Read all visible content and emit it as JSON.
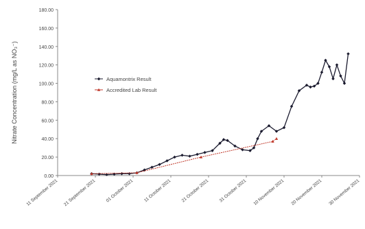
{
  "chart_data": {
    "type": "line",
    "title": "",
    "xlabel": "",
    "ylabel": "Nitrate Concentration (mg/L as NO₃⁻)",
    "ylim": [
      0,
      180
    ],
    "y_ticks": [
      "0.00",
      "20.00",
      "40.00",
      "60.00",
      "80.00",
      "100.00",
      "120.00",
      "140.00",
      "160.00",
      "180.00"
    ],
    "x_ticks": [
      "11 September 2021",
      "21 September 2021",
      "01 October 2021",
      "11 October 2021",
      "21 October 2021",
      "31 October 2021",
      "10 November 2021",
      "20 November 2021",
      "30 November 2021"
    ],
    "xlim": [
      "2021-09-11",
      "2021-11-30"
    ],
    "grid": false,
    "legend_position": "center-left",
    "series": [
      {
        "name": "Aquamontrix Result",
        "color": "#1a1a2e",
        "marker": "diamond",
        "x": [
          "2021-09-20",
          "2021-09-22",
          "2021-09-24",
          "2021-09-26",
          "2021-09-28",
          "2021-09-30",
          "2021-10-02",
          "2021-10-04",
          "2021-10-06",
          "2021-10-08",
          "2021-10-10",
          "2021-10-12",
          "2021-10-14",
          "2021-10-16",
          "2021-10-18",
          "2021-10-20",
          "2021-10-22",
          "2021-10-24",
          "2021-10-25",
          "2021-10-26",
          "2021-10-28",
          "2021-10-30",
          "2021-11-01",
          "2021-11-02",
          "2021-11-03",
          "2021-11-04",
          "2021-11-06",
          "2021-11-08",
          "2021-11-10",
          "2021-11-12",
          "2021-11-14",
          "2021-11-16",
          "2021-11-17",
          "2021-11-18",
          "2021-11-19",
          "2021-11-20",
          "2021-11-21",
          "2021-11-22",
          "2021-11-23",
          "2021-11-24",
          "2021-11-25",
          "2021-11-26",
          "2021-11-27"
        ],
        "values": [
          2,
          1.5,
          1,
          1.5,
          2,
          2,
          3,
          6,
          9,
          12,
          16,
          20,
          22,
          21,
          23,
          25,
          27,
          35,
          39,
          38,
          32,
          28,
          27,
          30,
          40,
          48,
          54,
          48,
          52,
          75,
          92,
          98,
          96,
          97,
          100,
          112,
          125,
          118,
          105,
          120,
          108,
          100,
          132
        ]
      },
      {
        "name": "Accredited Lab Result",
        "color": "#c0392b",
        "marker": "triangle",
        "x": [
          "2021-09-20",
          "2021-10-02",
          "2021-10-19",
          "2021-11-07",
          "2021-11-08"
        ],
        "values": [
          2,
          3,
          20,
          37,
          40
        ]
      }
    ]
  }
}
